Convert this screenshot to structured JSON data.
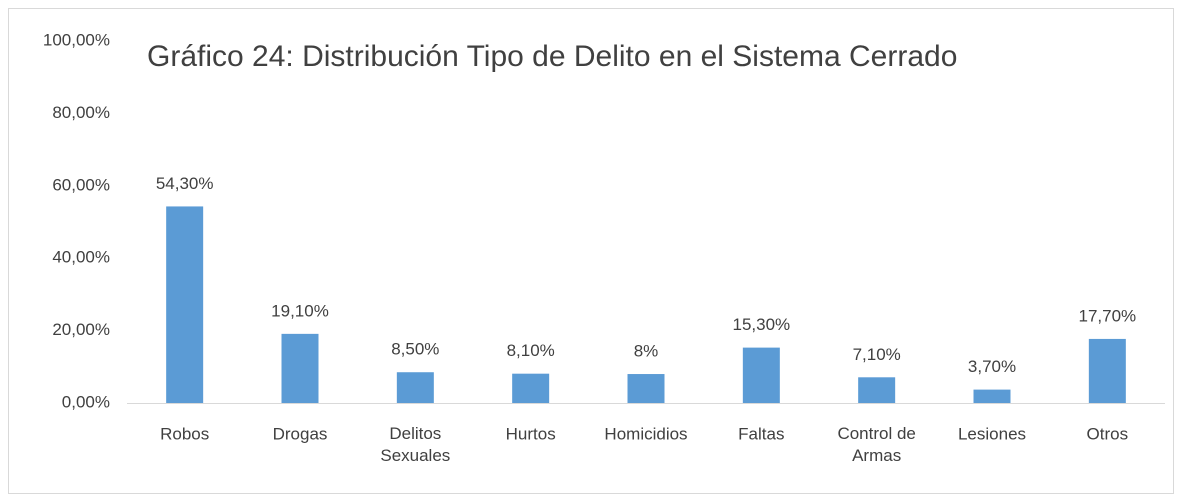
{
  "chart_data": {
    "type": "bar",
    "title": "Gráfico 24: Distribución Tipo de Delito en el Sistema Cerrado",
    "categories": [
      "Robos",
      "Drogas",
      "Delitos\nSexuales",
      "Hurtos",
      "Homicidios",
      "Faltas",
      "Control de\nArmas",
      "Lesiones",
      "Otros"
    ],
    "values": [
      54.3,
      19.1,
      8.5,
      8.1,
      8,
      15.3,
      7.1,
      3.7,
      17.7
    ],
    "value_labels": [
      "54,30%",
      "19,10%",
      "8,50%",
      "8,10%",
      "8%",
      "15,30%",
      "7,10%",
      "3,70%",
      "17,70%"
    ],
    "color": "#5b9bd5",
    "ylim": [
      0,
      100
    ],
    "yticks": [
      {
        "value": 0,
        "label": "0,00%"
      },
      {
        "value": 20,
        "label": "20,00%"
      },
      {
        "value": 40,
        "label": "40,00%"
      },
      {
        "value": 60,
        "label": "60,00%"
      },
      {
        "value": 80,
        "label": "80,00%"
      },
      {
        "value": 100,
        "label": "100,00%"
      }
    ],
    "grid": false
  }
}
